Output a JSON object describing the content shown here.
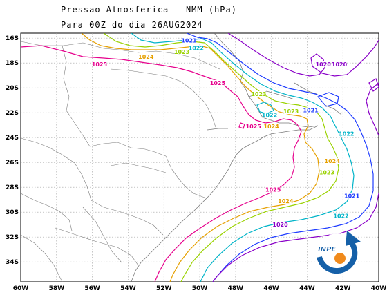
{
  "title_line1": "Pressao Atmosferica - NMM (hPa)",
  "title_line2": "Para 00Z do dia 26AUG2024",
  "logo_text": "INPE",
  "colors": {
    "c1020": "#8a00c8",
    "c1021": "#1e3cff",
    "c1022": "#00b4c8",
    "c1023": "#9ad200",
    "c1024": "#e6a000",
    "c1025": "#e6008c",
    "coast": "#7a7a7a",
    "grid": "#a0a0a0"
  },
  "lat_labels": [
    "16S",
    "18S",
    "20S",
    "22S",
    "24S",
    "26S",
    "28S",
    "30S",
    "32S",
    "34S"
  ],
  "lon_labels": [
    "60W",
    "58W",
    "56W",
    "54W",
    "52W",
    "50W",
    "48W",
    "46W",
    "44W",
    "42W",
    "40W"
  ],
  "contour_labels": [
    {
      "text": "1021",
      "level": "c1021",
      "x": 50.6,
      "y": -16.3
    },
    {
      "text": "1022",
      "level": "c1022",
      "x": 50.2,
      "y": -16.9
    },
    {
      "text": "1023",
      "level": "c1023",
      "x": 51.0,
      "y": -17.2
    },
    {
      "text": "1024",
      "level": "c1024",
      "x": 53.0,
      "y": -17.6
    },
    {
      "text": "1025",
      "level": "c1025",
      "x": 55.6,
      "y": -18.2
    },
    {
      "text": "1020",
      "level": "c1020",
      "x": 43.1,
      "y": -18.2
    },
    {
      "text": "1020",
      "level": "c1020",
      "x": 42.2,
      "y": -18.2
    },
    {
      "text": "1025",
      "level": "c1025",
      "x": 49.0,
      "y": -19.7
    },
    {
      "text": "1023",
      "level": "c1023",
      "x": 46.7,
      "y": -20.6
    },
    {
      "text": "1023",
      "level": "c1023",
      "x": 44.9,
      "y": -22.0
    },
    {
      "text": "1021",
      "level": "c1021",
      "x": 43.8,
      "y": -21.9
    },
    {
      "text": "1022",
      "level": "c1022",
      "x": 46.1,
      "y": -22.3
    },
    {
      "text": "1025",
      "level": "c1025",
      "x": 47.0,
      "y": -23.2
    },
    {
      "text": "1024",
      "level": "c1024",
      "x": 46.0,
      "y": -23.2
    },
    {
      "text": "1022",
      "level": "c1022",
      "x": 41.8,
      "y": -23.8
    },
    {
      "text": "1024",
      "level": "c1024",
      "x": 42.6,
      "y": -26.0
    },
    {
      "text": "1023",
      "level": "c1023",
      "x": 42.9,
      "y": -26.9
    },
    {
      "text": "1025",
      "level": "c1025",
      "x": 45.9,
      "y": -28.3
    },
    {
      "text": "1021",
      "level": "c1021",
      "x": 41.5,
      "y": -28.8
    },
    {
      "text": "1024",
      "level": "c1024",
      "x": 45.2,
      "y": -29.2
    },
    {
      "text": "1022",
      "level": "c1022",
      "x": 42.1,
      "y": -30.4
    },
    {
      "text": "1020",
      "level": "c1020",
      "x": 45.5,
      "y": -31.1
    }
  ]
}
